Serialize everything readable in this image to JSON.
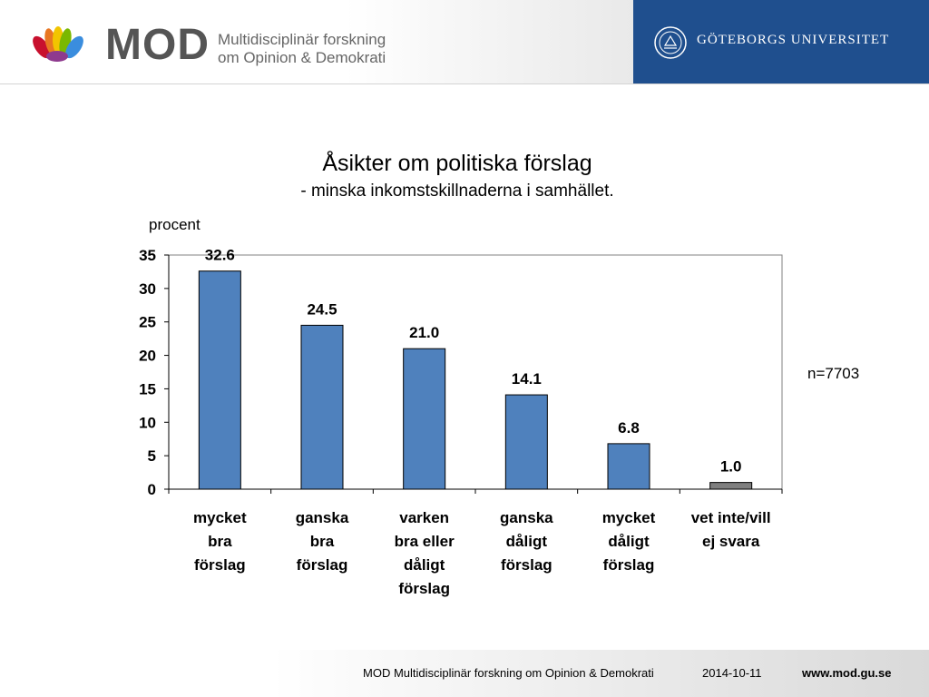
{
  "header": {
    "brand": "MOD",
    "subtitle_line1": "Multidisciplinär forskning",
    "subtitle_line2": "om Opinion & Demokrati",
    "university": "GÖTEBORGS UNIVERSITET"
  },
  "n_label": "n=7703",
  "colors": {
    "bar": "#4f81bd",
    "bar_last": "#7f7f7f",
    "header_blue": "#1f4f8e"
  },
  "chart_data": {
    "type": "bar",
    "title": "Åsikter om politiska förslag",
    "subtitle": "- minska inkomstskillnaderna i samhället.",
    "ylabel": "procent",
    "xlabel": "",
    "ylim": [
      0,
      35
    ],
    "yticks": [
      0,
      5,
      10,
      15,
      20,
      25,
      30,
      35
    ],
    "grid": false,
    "categories": [
      [
        "mycket",
        "bra",
        "förslag"
      ],
      [
        "ganska",
        "bra",
        "förslag"
      ],
      [
        "varken",
        "bra eller",
        "dåligt",
        "förslag"
      ],
      [
        "ganska",
        "dåligt",
        "förslag"
      ],
      [
        "mycket",
        "dåligt",
        "förslag"
      ],
      [
        "vet inte/vill",
        "ej svara"
      ]
    ],
    "values": [
      32.6,
      24.5,
      21.0,
      14.1,
      6.8,
      1.0
    ],
    "value_labels": [
      "32.6",
      "24.5",
      "21.0",
      "14.1",
      "6.8",
      "1.0"
    ]
  },
  "footer": {
    "org": "MOD Multidisciplinär forskning om Opinion & Demokrati",
    "date": "2014-10-11",
    "url": "www.mod.gu.se"
  }
}
